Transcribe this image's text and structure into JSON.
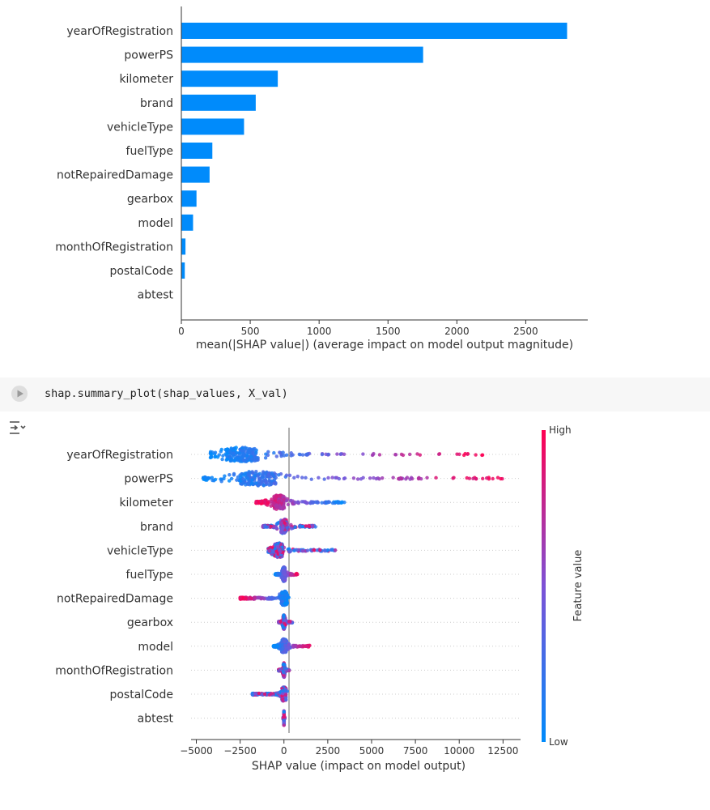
{
  "cell": {
    "code": "shap.summary_plot(shap_values, X_val)",
    "run_icon": "play-circle-icon",
    "output_icon": "output-toggle-icon"
  },
  "colors": {
    "bar": "#008bfb",
    "low": "#008bfb",
    "high": "#ff0052"
  },
  "chart_data": [
    {
      "type": "bar",
      "orientation": "horizontal",
      "categories": [
        "yearOfRegistration",
        "powerPS",
        "kilometer",
        "brand",
        "vehicleType",
        "fuelType",
        "notRepairedDamage",
        "gearbox",
        "model",
        "monthOfRegistration",
        "postalCode",
        "abtest"
      ],
      "values": [
        2800,
        1755,
        700,
        540,
        455,
        225,
        205,
        110,
        85,
        30,
        25,
        0
      ],
      "xlabel": "mean(|SHAP value|) (average impact on model output magnitude)",
      "xticks": [
        0,
        500,
        1000,
        1500,
        2000,
        2500
      ],
      "xlim": [
        0,
        2950
      ]
    },
    {
      "type": "scatter",
      "subtype": "beeswarm",
      "categories": [
        "yearOfRegistration",
        "powerPS",
        "kilometer",
        "brand",
        "vehicleType",
        "fuelType",
        "notRepairedDamage",
        "gearbox",
        "model",
        "monthOfRegistration",
        "postalCode",
        "abtest"
      ],
      "ranges": [
        [
          -4200,
          11400
        ],
        [
          -4600,
          12600
        ],
        [
          -1600,
          3500
        ],
        [
          -1200,
          1800
        ],
        [
          -900,
          3000
        ],
        [
          -500,
          800
        ],
        [
          -2500,
          300
        ],
        [
          -300,
          500
        ],
        [
          -600,
          1500
        ],
        [
          -300,
          300
        ],
        [
          -1800,
          200
        ],
        [
          -50,
          50
        ]
      ],
      "xlabel": "SHAP value (impact on model output)",
      "xticks": [
        "−5000",
        "−2500",
        "0",
        "2500",
        "5000",
        "7500",
        "10000",
        "12500"
      ],
      "xtick_values": [
        -5000,
        -2500,
        0,
        2500,
        5000,
        7500,
        10000,
        12500
      ],
      "xlim": [
        -5300,
        13500
      ],
      "colorbar": {
        "label": "Feature value",
        "high": "High",
        "low": "Low"
      }
    }
  ]
}
